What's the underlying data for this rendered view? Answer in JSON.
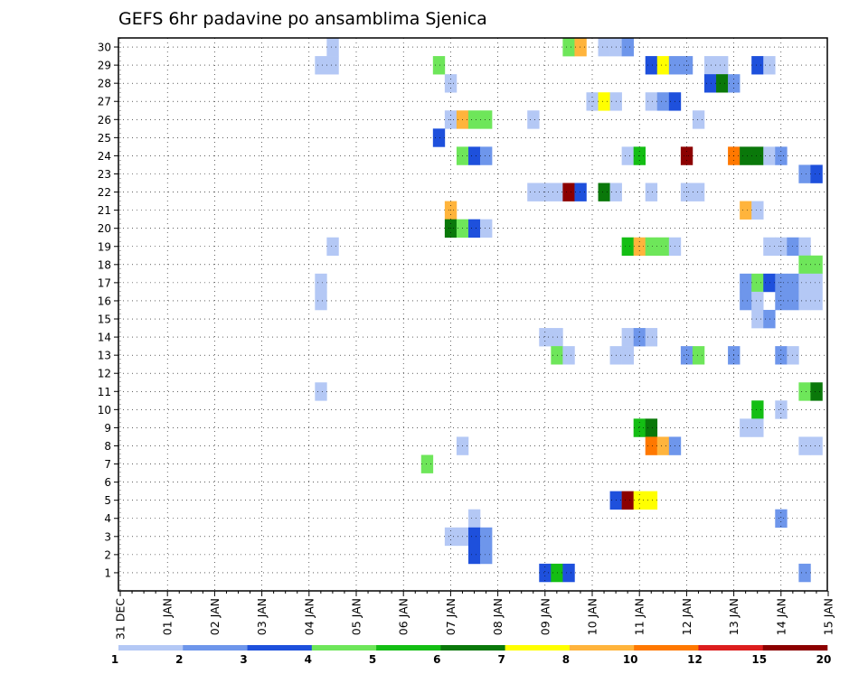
{
  "chart_data": {
    "type": "heatmap",
    "title": "GEFS 6hr padavine po ansamblima Sjenica",
    "x_tick_labels": [
      "31 DEC",
      "01 JAN",
      "02 JAN",
      "03 JAN",
      "04 JAN",
      "05 JAN",
      "06 JAN",
      "07 JAN",
      "08 JAN",
      "09 JAN",
      "10 JAN",
      "11 JAN",
      "12 JAN",
      "13 JAN",
      "14 JAN",
      "15 JAN"
    ],
    "x_range_steps": [
      0,
      60
    ],
    "y_tick_labels": [
      "1",
      "2",
      "3",
      "4",
      "5",
      "6",
      "7",
      "8",
      "9",
      "10",
      "11",
      "12",
      "13",
      "14",
      "15",
      "16",
      "17",
      "18",
      "19",
      "20",
      "21",
      "22",
      "23",
      "24",
      "25",
      "26",
      "27",
      "28",
      "29",
      "30"
    ],
    "grid": true,
    "legend": {
      "position": "bottom",
      "colors": [
        "#b4c8f5",
        "#6e96eb",
        "#1e50dc",
        "#6ee65a",
        "#14be14",
        "#0a780a",
        "#ffff00",
        "#ffb43c",
        "#ff7800",
        "#dc1e1e",
        "#8c0000"
      ],
      "labels": [
        "1",
        "2",
        "3",
        "4",
        "5",
        "6",
        "7",
        "8",
        "10",
        "12",
        "15",
        "20"
      ]
    },
    "cells": [
      {
        "x": 19,
        "y": 30,
        "c": 0
      },
      {
        "x": 39,
        "y": 30,
        "c": 3
      },
      {
        "x": 40,
        "y": 30,
        "c": 7
      },
      {
        "x": 42,
        "y": 30,
        "c": 0
      },
      {
        "x": 43,
        "y": 30,
        "c": 0
      },
      {
        "x": 44,
        "y": 30,
        "c": 1
      },
      {
        "x": 18,
        "y": 29,
        "c": 0
      },
      {
        "x": 19,
        "y": 29,
        "c": 0
      },
      {
        "x": 28,
        "y": 29,
        "c": 3
      },
      {
        "x": 46,
        "y": 29,
        "c": 2
      },
      {
        "x": 47,
        "y": 29,
        "c": 6
      },
      {
        "x": 48,
        "y": 29,
        "c": 1
      },
      {
        "x": 49,
        "y": 29,
        "c": 1
      },
      {
        "x": 51,
        "y": 29,
        "c": 0
      },
      {
        "x": 52,
        "y": 29,
        "c": 0
      },
      {
        "x": 55,
        "y": 29,
        "c": 2
      },
      {
        "x": 56,
        "y": 29,
        "c": 0
      },
      {
        "x": 29,
        "y": 28,
        "c": 0
      },
      {
        "x": 51,
        "y": 28,
        "c": 2
      },
      {
        "x": 52,
        "y": 28,
        "c": 5
      },
      {
        "x": 53,
        "y": 28,
        "c": 1
      },
      {
        "x": 41,
        "y": 27,
        "c": 0
      },
      {
        "x": 42,
        "y": 27,
        "c": 6
      },
      {
        "x": 43,
        "y": 27,
        "c": 0
      },
      {
        "x": 46,
        "y": 27,
        "c": 0
      },
      {
        "x": 47,
        "y": 27,
        "c": 1
      },
      {
        "x": 48,
        "y": 27,
        "c": 2
      },
      {
        "x": 29,
        "y": 26,
        "c": 0
      },
      {
        "x": 30,
        "y": 26,
        "c": 7
      },
      {
        "x": 31,
        "y": 26,
        "c": 3
      },
      {
        "x": 32,
        "y": 26,
        "c": 3
      },
      {
        "x": 36,
        "y": 26,
        "c": 0
      },
      {
        "x": 50,
        "y": 26,
        "c": 0
      },
      {
        "x": 28,
        "y": 25,
        "c": 2
      },
      {
        "x": 30,
        "y": 24,
        "c": 3
      },
      {
        "x": 31,
        "y": 24,
        "c": 2
      },
      {
        "x": 32,
        "y": 24,
        "c": 1
      },
      {
        "x": 44,
        "y": 24,
        "c": 0
      },
      {
        "x": 45,
        "y": 24,
        "c": 4
      },
      {
        "x": 49,
        "y": 24,
        "c": 10
      },
      {
        "x": 53,
        "y": 24,
        "c": 8
      },
      {
        "x": 54,
        "y": 24,
        "c": 5
      },
      {
        "x": 55,
        "y": 24,
        "c": 5
      },
      {
        "x": 56,
        "y": 24,
        "c": 0
      },
      {
        "x": 57,
        "y": 24,
        "c": 1
      },
      {
        "x": 59,
        "y": 23,
        "c": 1
      },
      {
        "x": 60,
        "y": 23,
        "c": 2
      },
      {
        "x": 36,
        "y": 22,
        "c": 0
      },
      {
        "x": 37,
        "y": 22,
        "c": 0
      },
      {
        "x": 38,
        "y": 22,
        "c": 0
      },
      {
        "x": 39,
        "y": 22,
        "c": 10
      },
      {
        "x": 40,
        "y": 22,
        "c": 2
      },
      {
        "x": 42,
        "y": 22,
        "c": 5
      },
      {
        "x": 43,
        "y": 22,
        "c": 0
      },
      {
        "x": 46,
        "y": 22,
        "c": 0
      },
      {
        "x": 49,
        "y": 22,
        "c": 0
      },
      {
        "x": 50,
        "y": 22,
        "c": 0
      },
      {
        "x": 29,
        "y": 21,
        "c": 7
      },
      {
        "x": 54,
        "y": 21,
        "c": 7
      },
      {
        "x": 55,
        "y": 21,
        "c": 0
      },
      {
        "x": 29,
        "y": 20,
        "c": 5
      },
      {
        "x": 30,
        "y": 20,
        "c": 3
      },
      {
        "x": 31,
        "y": 20,
        "c": 2
      },
      {
        "x": 32,
        "y": 20,
        "c": 0
      },
      {
        "x": 19,
        "y": 19,
        "c": 0
      },
      {
        "x": 44,
        "y": 19,
        "c": 4
      },
      {
        "x": 45,
        "y": 19,
        "c": 7
      },
      {
        "x": 46,
        "y": 19,
        "c": 3
      },
      {
        "x": 47,
        "y": 19,
        "c": 3
      },
      {
        "x": 48,
        "y": 19,
        "c": 0
      },
      {
        "x": 56,
        "y": 19,
        "c": 0
      },
      {
        "x": 57,
        "y": 19,
        "c": 0
      },
      {
        "x": 58,
        "y": 19,
        "c": 1
      },
      {
        "x": 59,
        "y": 19,
        "c": 0
      },
      {
        "x": 59,
        "y": 18,
        "c": 3
      },
      {
        "x": 60,
        "y": 18,
        "c": 3
      },
      {
        "x": 18,
        "y": 17,
        "c": 0
      },
      {
        "x": 54,
        "y": 17,
        "c": 1
      },
      {
        "x": 55,
        "y": 17,
        "c": 3
      },
      {
        "x": 56,
        "y": 17,
        "c": 2
      },
      {
        "x": 57,
        "y": 17,
        "c": 1
      },
      {
        "x": 58,
        "y": 17,
        "c": 1
      },
      {
        "x": 59,
        "y": 17,
        "c": 0
      },
      {
        "x": 60,
        "y": 17,
        "c": 0
      },
      {
        "x": 18,
        "y": 16,
        "c": 0
      },
      {
        "x": 54,
        "y": 16,
        "c": 1
      },
      {
        "x": 55,
        "y": 16,
        "c": 0
      },
      {
        "x": 57,
        "y": 16,
        "c": 1
      },
      {
        "x": 58,
        "y": 16,
        "c": 1
      },
      {
        "x": 59,
        "y": 16,
        "c": 0
      },
      {
        "x": 60,
        "y": 16,
        "c": 0
      },
      {
        "x": 55,
        "y": 15,
        "c": 0
      },
      {
        "x": 56,
        "y": 15,
        "c": 1
      },
      {
        "x": 37,
        "y": 14,
        "c": 0
      },
      {
        "x": 38,
        "y": 14,
        "c": 0
      },
      {
        "x": 44,
        "y": 14,
        "c": 0
      },
      {
        "x": 45,
        "y": 14,
        "c": 1
      },
      {
        "x": 46,
        "y": 14,
        "c": 0
      },
      {
        "x": 38,
        "y": 13,
        "c": 3
      },
      {
        "x": 39,
        "y": 13,
        "c": 0
      },
      {
        "x": 43,
        "y": 13,
        "c": 0
      },
      {
        "x": 44,
        "y": 13,
        "c": 0
      },
      {
        "x": 49,
        "y": 13,
        "c": 1
      },
      {
        "x": 50,
        "y": 13,
        "c": 3
      },
      {
        "x": 53,
        "y": 13,
        "c": 1
      },
      {
        "x": 57,
        "y": 13,
        "c": 1
      },
      {
        "x": 58,
        "y": 13,
        "c": 0
      },
      {
        "x": 18,
        "y": 11,
        "c": 0
      },
      {
        "x": 59,
        "y": 11,
        "c": 3
      },
      {
        "x": 60,
        "y": 11,
        "c": 5
      },
      {
        "x": 55,
        "y": 10,
        "c": 4
      },
      {
        "x": 57,
        "y": 10,
        "c": 0
      },
      {
        "x": 45,
        "y": 9,
        "c": 4
      },
      {
        "x": 46,
        "y": 9,
        "c": 5
      },
      {
        "x": 54,
        "y": 9,
        "c": 0
      },
      {
        "x": 55,
        "y": 9,
        "c": 0
      },
      {
        "x": 30,
        "y": 8,
        "c": 0
      },
      {
        "x": 46,
        "y": 8,
        "c": 8
      },
      {
        "x": 47,
        "y": 8,
        "c": 7
      },
      {
        "x": 48,
        "y": 8,
        "c": 1
      },
      {
        "x": 59,
        "y": 8,
        "c": 0
      },
      {
        "x": 60,
        "y": 8,
        "c": 0
      },
      {
        "x": 27,
        "y": 7,
        "c": 3
      },
      {
        "x": 43,
        "y": 5,
        "c": 2
      },
      {
        "x": 44,
        "y": 5,
        "c": 10
      },
      {
        "x": 45,
        "y": 5,
        "c": 6
      },
      {
        "x": 46,
        "y": 5,
        "c": 6
      },
      {
        "x": 31,
        "y": 4,
        "c": 0
      },
      {
        "x": 57,
        "y": 4,
        "c": 1
      },
      {
        "x": 29,
        "y": 3,
        "c": 0
      },
      {
        "x": 30,
        "y": 3,
        "c": 0
      },
      {
        "x": 31,
        "y": 3,
        "c": 2
      },
      {
        "x": 32,
        "y": 3,
        "c": 1
      },
      {
        "x": 31,
        "y": 2,
        "c": 2
      },
      {
        "x": 32,
        "y": 2,
        "c": 1
      },
      {
        "x": 37,
        "y": 1,
        "c": 2
      },
      {
        "x": 38,
        "y": 1,
        "c": 4
      },
      {
        "x": 39,
        "y": 1,
        "c": 2
      },
      {
        "x": 59,
        "y": 1,
        "c": 1
      }
    ]
  }
}
